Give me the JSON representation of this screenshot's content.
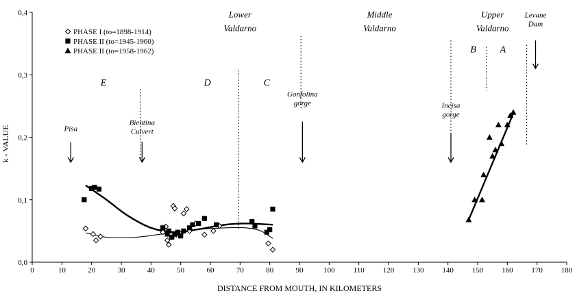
{
  "chart_data": {
    "type": "scatter",
    "xlabel": "DISTANCE FROM MOUTH, IN KILOMETERS",
    "ylabel": "k - VALUE",
    "xlim": [
      0,
      180
    ],
    "ylim": [
      0.0,
      0.4
    ],
    "x_ticks": [
      "0",
      "10",
      "20",
      "30",
      "40",
      "50",
      "60",
      "70",
      "80",
      "90",
      "100",
      "110",
      "120",
      "130",
      "140",
      "150",
      "160",
      "170",
      "180"
    ],
    "y_ticks": [
      "0,0",
      "0,1",
      "0,2",
      "0,3",
      "0,4"
    ],
    "grid": false,
    "legend_position": "top-left",
    "legend": [
      {
        "label": "PHASE I (to=1898-1914)",
        "marker": "diamond-open"
      },
      {
        "label": "PHASE II (to=1945-1960)",
        "marker": "square-filled"
      },
      {
        "label": "PHASE II (to=1958-1962)",
        "marker": "triangle-filled"
      }
    ],
    "series": [
      {
        "name": "PHASE I (to=1898-1914)",
        "marker": "diamond-open",
        "points": [
          [
            18,
            0.054
          ],
          [
            20.5,
            0.045
          ],
          [
            21.5,
            0.035
          ],
          [
            23,
            0.041
          ],
          [
            44,
            0.048
          ],
          [
            45,
            0.057
          ],
          [
            45.5,
            0.035
          ],
          [
            46,
            0.028
          ],
          [
            47,
            0.04
          ],
          [
            47.5,
            0.09
          ],
          [
            48,
            0.086
          ],
          [
            48.5,
            0.044
          ],
          [
            50,
            0.045
          ],
          [
            51,
            0.078
          ],
          [
            52,
            0.085
          ],
          [
            53,
            0.05
          ],
          [
            55,
            0.062
          ],
          [
            58,
            0.044
          ],
          [
            61,
            0.05
          ],
          [
            63,
            0.058
          ],
          [
            79.5,
            0.03
          ],
          [
            81,
            0.02
          ]
        ],
        "trend": [
          [
            18,
            0.047
          ],
          [
            25,
            0.04
          ],
          [
            35,
            0.04
          ],
          [
            45,
            0.046
          ],
          [
            55,
            0.052
          ],
          [
            65,
            0.055
          ],
          [
            72,
            0.055
          ],
          [
            77,
            0.05
          ],
          [
            81,
            0.038
          ]
        ]
      },
      {
        "name": "PHASE II (to=1945-1960)",
        "marker": "square-filled",
        "points": [
          [
            17.5,
            0.1
          ],
          [
            20,
            0.118
          ],
          [
            21,
            0.12
          ],
          [
            22.5,
            0.117
          ],
          [
            44,
            0.055
          ],
          [
            45.5,
            0.045
          ],
          [
            46,
            0.05
          ],
          [
            47,
            0.04
          ],
          [
            48,
            0.045
          ],
          [
            49,
            0.048
          ],
          [
            50,
            0.042
          ],
          [
            51,
            0.05
          ],
          [
            53,
            0.055
          ],
          [
            54,
            0.06
          ],
          [
            56,
            0.062
          ],
          [
            58,
            0.07
          ],
          [
            62,
            0.06
          ],
          [
            74,
            0.065
          ],
          [
            75,
            0.058
          ],
          [
            79,
            0.048
          ],
          [
            80,
            0.052
          ],
          [
            81,
            0.085
          ]
        ],
        "trend": [
          [
            18,
            0.123
          ],
          [
            25,
            0.1
          ],
          [
            32,
            0.075
          ],
          [
            40,
            0.055
          ],
          [
            48,
            0.048
          ],
          [
            55,
            0.052
          ],
          [
            65,
            0.06
          ],
          [
            72,
            0.062
          ],
          [
            81,
            0.06
          ]
        ]
      },
      {
        "name": "PHASE II (to=1958-1962)",
        "marker": "triangle-filled",
        "points": [
          [
            147,
            0.068
          ],
          [
            149,
            0.1
          ],
          [
            151.5,
            0.1
          ],
          [
            152,
            0.14
          ],
          [
            154,
            0.2
          ],
          [
            155,
            0.17
          ],
          [
            156,
            0.18
          ],
          [
            157,
            0.22
          ],
          [
            158,
            0.19
          ],
          [
            160,
            0.22
          ],
          [
            161,
            0.235
          ],
          [
            162,
            0.24
          ]
        ],
        "trend": [
          [
            147,
            0.068
          ],
          [
            162,
            0.238
          ]
        ]
      }
    ],
    "region_labels": [
      {
        "text": "Lower",
        "x": 70,
        "y": 0.392
      },
      {
        "text": "Valdarno",
        "x": 70,
        "y": 0.37
      },
      {
        "text": "Middle",
        "x": 117,
        "y": 0.392
      },
      {
        "text": "Valdarno",
        "x": 117,
        "y": 0.37
      },
      {
        "text": "Upper",
        "x": 155,
        "y": 0.392
      },
      {
        "text": "Valdarno",
        "x": 155,
        "y": 0.37
      }
    ],
    "zone_labels": [
      {
        "text": "E",
        "x": 24,
        "y": 0.283
      },
      {
        "text": "D",
        "x": 59,
        "y": 0.283
      },
      {
        "text": "C",
        "x": 79,
        "y": 0.283
      },
      {
        "text": "B",
        "x": 148.5,
        "y": 0.336
      },
      {
        "text": "A",
        "x": 158.5,
        "y": 0.336
      }
    ],
    "boundaries": [
      {
        "x": 36.5,
        "y_from": 0.165,
        "y_to": 0.277
      },
      {
        "x": 69.5,
        "y_from": 0.053,
        "y_to": 0.307
      },
      {
        "x": 90.5,
        "y_from": 0.245,
        "y_to": 0.362
      },
      {
        "x": 141,
        "y_from": 0.205,
        "y_to": 0.355
      },
      {
        "x": 153,
        "y_from": 0.275,
        "y_to": 0.345
      },
      {
        "x": 166.5,
        "y_from": 0.188,
        "y_to": 0.348
      }
    ],
    "annotations": [
      {
        "lines": [
          "Pisa"
        ],
        "x": 13,
        "text_y": 0.21,
        "arrow_from": 0.192,
        "arrow_to": 0.16
      },
      {
        "lines": [
          "Bientina",
          "Culvert"
        ],
        "x": 37,
        "text_y": 0.22,
        "arrow_from": 0.193,
        "arrow_to": 0.16
      },
      {
        "lines": [
          "Gonfolina",
          "gorge"
        ],
        "x": 91,
        "text_y": 0.265,
        "arrow_from": 0.225,
        "arrow_to": 0.16
      },
      {
        "lines": [
          "Incisa",
          "gorge"
        ],
        "x": 141,
        "text_y": 0.247,
        "arrow_from": 0.207,
        "arrow_to": 0.16
      },
      {
        "lines": [
          "Levane",
          "Dam"
        ],
        "x": 169.5,
        "text_y": 0.392,
        "arrow_from": 0.355,
        "arrow_to": 0.31
      }
    ]
  }
}
